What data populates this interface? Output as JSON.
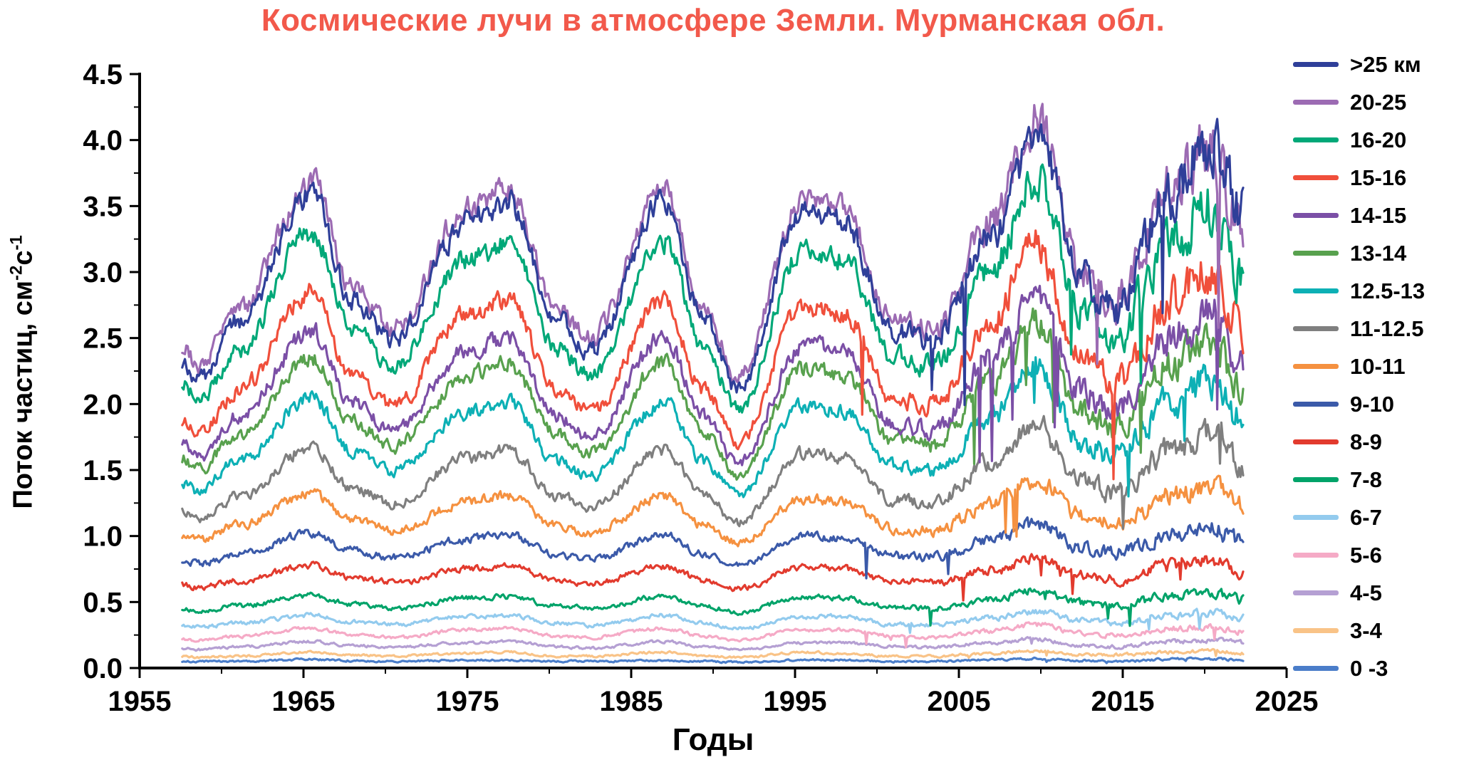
{
  "title": "Космические лучи в атмосфере Земли. Мурманская обл.",
  "colors": {
    "title": "#f2594b",
    "axis": "#000000",
    "background": "#ffffff"
  },
  "chart_data": {
    "type": "line",
    "title": "Космические лучи в атмосфере Земли. Мурманская обл.",
    "xlabel": "Годы",
    "ylabel": "Поток частиц, см⁻²с⁻¹",
    "ylabel_parts": {
      "prefix": "Поток частиц, см",
      "sup1": "-2",
      "unit2": "с",
      "sup2": "-1"
    },
    "xlim": [
      1955,
      2025
    ],
    "ylim": [
      0,
      4.5
    ],
    "x_ticks": [
      1955,
      1965,
      1975,
      1985,
      1995,
      2005,
      2015,
      2025
    ],
    "x_tick_labels": [
      "1955",
      "1965",
      "1975",
      "1985",
      "1995",
      "2005",
      "2015",
      "2025"
    ],
    "x_minor_step": 5,
    "y_ticks": [
      0,
      0.5,
      1,
      1.5,
      2,
      2.5,
      3,
      3.5,
      4,
      4.5
    ],
    "y_tick_labels": [
      "0.0",
      "0.5",
      "1.0",
      "1.5",
      "2.0",
      "2.5",
      "3.0",
      "3.5",
      "4.0",
      "4.5"
    ],
    "y_minor_step": 0.25,
    "grid": false,
    "legend_position": "right",
    "x_range": [
      1957.6,
      2022.4
    ],
    "anchor_years": [
      1957.6,
      1958.6,
      1961,
      1965.5,
      1968,
      1970.5,
      1975,
      1977.5,
      1980.5,
      1982.5,
      1987,
      1989.5,
      1991.5,
      1995.5,
      1998,
      2001,
      2003.5,
      2007,
      2009.7,
      2012.5,
      2014.5,
      2018,
      2020.3,
      2022.4
    ],
    "series": [
      {
        "name": ">25 км",
        "color": "#2f3f99",
        "values": [
          2.33,
          2.18,
          2.63,
          3.6,
          2.78,
          2.48,
          3.38,
          3.53,
          2.63,
          2.4,
          3.53,
          2.63,
          2.1,
          3.45,
          3.38,
          2.55,
          2.48,
          3.3,
          4.05,
          2.93,
          2.7,
          3.6,
          4.0,
          3.45
        ]
      },
      {
        "name": "20-25",
        "color": "#9c6bb3",
        "values": [
          2.43,
          2.28,
          2.73,
          3.7,
          2.88,
          2.58,
          3.48,
          3.63,
          2.73,
          2.5,
          3.63,
          2.73,
          2.2,
          3.55,
          3.48,
          2.65,
          2.58,
          3.4,
          4.15,
          3.03,
          2.8,
          3.63,
          3.93,
          3.33
        ]
      },
      {
        "name": "16-20",
        "color": "#00a878",
        "values": [
          2.15,
          2.02,
          2.42,
          3.3,
          2.56,
          2.29,
          3.1,
          3.23,
          2.42,
          2.22,
          3.23,
          2.42,
          1.95,
          3.17,
          3.1,
          2.36,
          2.29,
          3.03,
          3.71,
          2.69,
          2.49,
          3.23,
          3.5,
          2.96
        ]
      },
      {
        "name": "15-16",
        "color": "#f04f3b",
        "values": [
          1.87,
          1.76,
          2.1,
          2.85,
          2.22,
          1.99,
          2.68,
          2.79,
          2.1,
          1.93,
          2.79,
          2.1,
          1.7,
          2.74,
          2.68,
          2.05,
          1.99,
          2.62,
          3.2,
          2.33,
          2.16,
          2.79,
          3.02,
          2.56
        ]
      },
      {
        "name": "14-15",
        "color": "#7b4fa6",
        "values": [
          1.7,
          1.6,
          1.9,
          2.55,
          2.0,
          1.8,
          2.4,
          2.5,
          1.9,
          1.75,
          2.5,
          1.9,
          1.55,
          2.45,
          2.4,
          1.85,
          1.8,
          2.35,
          2.85,
          2.1,
          1.95,
          2.5,
          2.7,
          2.3
        ]
      },
      {
        "name": "13-14",
        "color": "#58a14e",
        "values": [
          1.59,
          1.5,
          1.77,
          2.35,
          1.86,
          1.68,
          2.22,
          2.31,
          1.77,
          1.63,
          2.31,
          1.77,
          1.45,
          2.26,
          2.22,
          1.72,
          1.68,
          2.17,
          2.62,
          1.95,
          1.81,
          2.31,
          2.49,
          2.13
        ]
      },
      {
        "name": "12.5-13",
        "color": "#0db0b5",
        "values": [
          1.41,
          1.34,
          1.56,
          2.05,
          1.64,
          1.49,
          1.94,
          2.01,
          1.56,
          1.45,
          2.01,
          1.56,
          1.3,
          1.98,
          1.94,
          1.53,
          1.49,
          1.9,
          2.28,
          1.71,
          1.6,
          2.01,
          2.16,
          1.86
        ]
      },
      {
        "name": "11-12.5",
        "color": "#7f7f7f",
        "values": [
          1.19,
          1.13,
          1.3,
          1.68,
          1.36,
          1.25,
          1.59,
          1.65,
          1.3,
          1.22,
          1.65,
          1.3,
          1.1,
          1.62,
          1.59,
          1.27,
          1.25,
          1.56,
          1.85,
          1.42,
          1.33,
          1.65,
          1.77,
          1.54
        ]
      },
      {
        "name": "10-11",
        "color": "#f59140",
        "values": [
          1.01,
          0.97,
          1.08,
          1.32,
          1.12,
          1.04,
          1.26,
          1.3,
          1.08,
          1.02,
          1.3,
          1.08,
          0.95,
          1.28,
          1.26,
          1.06,
          1.04,
          1.25,
          1.43,
          1.15,
          1.1,
          1.3,
          1.38,
          1.23
        ]
      },
      {
        "name": "9-10",
        "color": "#3b5aa9",
        "values": [
          0.82,
          0.79,
          0.86,
          1.02,
          0.89,
          0.84,
          0.98,
          1.01,
          0.86,
          0.83,
          1.01,
          0.86,
          0.78,
          1.0,
          0.98,
          0.85,
          0.84,
          0.97,
          1.09,
          0.91,
          0.88,
          1.01,
          1.06,
          0.96
        ]
      },
      {
        "name": "8-9",
        "color": "#e23b2e",
        "values": [
          0.63,
          0.61,
          0.66,
          0.78,
          0.68,
          0.65,
          0.75,
          0.77,
          0.66,
          0.64,
          0.77,
          0.66,
          0.6,
          0.76,
          0.75,
          0.65,
          0.65,
          0.74,
          0.83,
          0.7,
          0.67,
          0.77,
          0.81,
          0.74
        ]
      },
      {
        "name": "7-8",
        "color": "#00a369",
        "values": [
          0.44,
          0.43,
          0.47,
          0.55,
          0.48,
          0.45,
          0.53,
          0.54,
          0.47,
          0.45,
          0.54,
          0.47,
          0.42,
          0.54,
          0.53,
          0.46,
          0.45,
          0.52,
          0.59,
          0.49,
          0.47,
          0.54,
          0.57,
          0.52
        ]
      },
      {
        "name": "6-7",
        "color": "#93cbee",
        "values": [
          0.32,
          0.31,
          0.34,
          0.4,
          0.35,
          0.33,
          0.39,
          0.4,
          0.34,
          0.32,
          0.4,
          0.34,
          0.3,
          0.39,
          0.39,
          0.33,
          0.33,
          0.38,
          0.43,
          0.36,
          0.34,
          0.4,
          0.42,
          0.38
        ]
      },
      {
        "name": "5-6",
        "color": "#f5aac6",
        "values": [
          0.22,
          0.21,
          0.24,
          0.3,
          0.25,
          0.23,
          0.29,
          0.3,
          0.24,
          0.23,
          0.3,
          0.24,
          0.21,
          0.29,
          0.29,
          0.24,
          0.23,
          0.28,
          0.33,
          0.26,
          0.25,
          0.3,
          0.31,
          0.28
        ]
      },
      {
        "name": "4-5",
        "color": "#b5a0d3",
        "values": [
          0.15,
          0.14,
          0.16,
          0.2,
          0.17,
          0.16,
          0.19,
          0.2,
          0.16,
          0.15,
          0.2,
          0.16,
          0.14,
          0.19,
          0.19,
          0.16,
          0.16,
          0.19,
          0.22,
          0.17,
          0.16,
          0.2,
          0.21,
          0.19
        ]
      },
      {
        "name": "3-4",
        "color": "#f9c387",
        "values": [
          0.09,
          0.08,
          0.09,
          0.12,
          0.1,
          0.09,
          0.11,
          0.12,
          0.09,
          0.09,
          0.12,
          0.09,
          0.08,
          0.12,
          0.11,
          0.09,
          0.09,
          0.11,
          0.13,
          0.1,
          0.1,
          0.12,
          0.13,
          0.11
        ]
      },
      {
        "name": "0 -3",
        "color": "#4a7dc9",
        "values": [
          0.05,
          0.05,
          0.05,
          0.065,
          0.055,
          0.05,
          0.06,
          0.06,
          0.05,
          0.05,
          0.06,
          0.05,
          0.045,
          0.06,
          0.06,
          0.05,
          0.05,
          0.06,
          0.07,
          0.055,
          0.05,
          0.065,
          0.07,
          0.06
        ]
      }
    ]
  }
}
